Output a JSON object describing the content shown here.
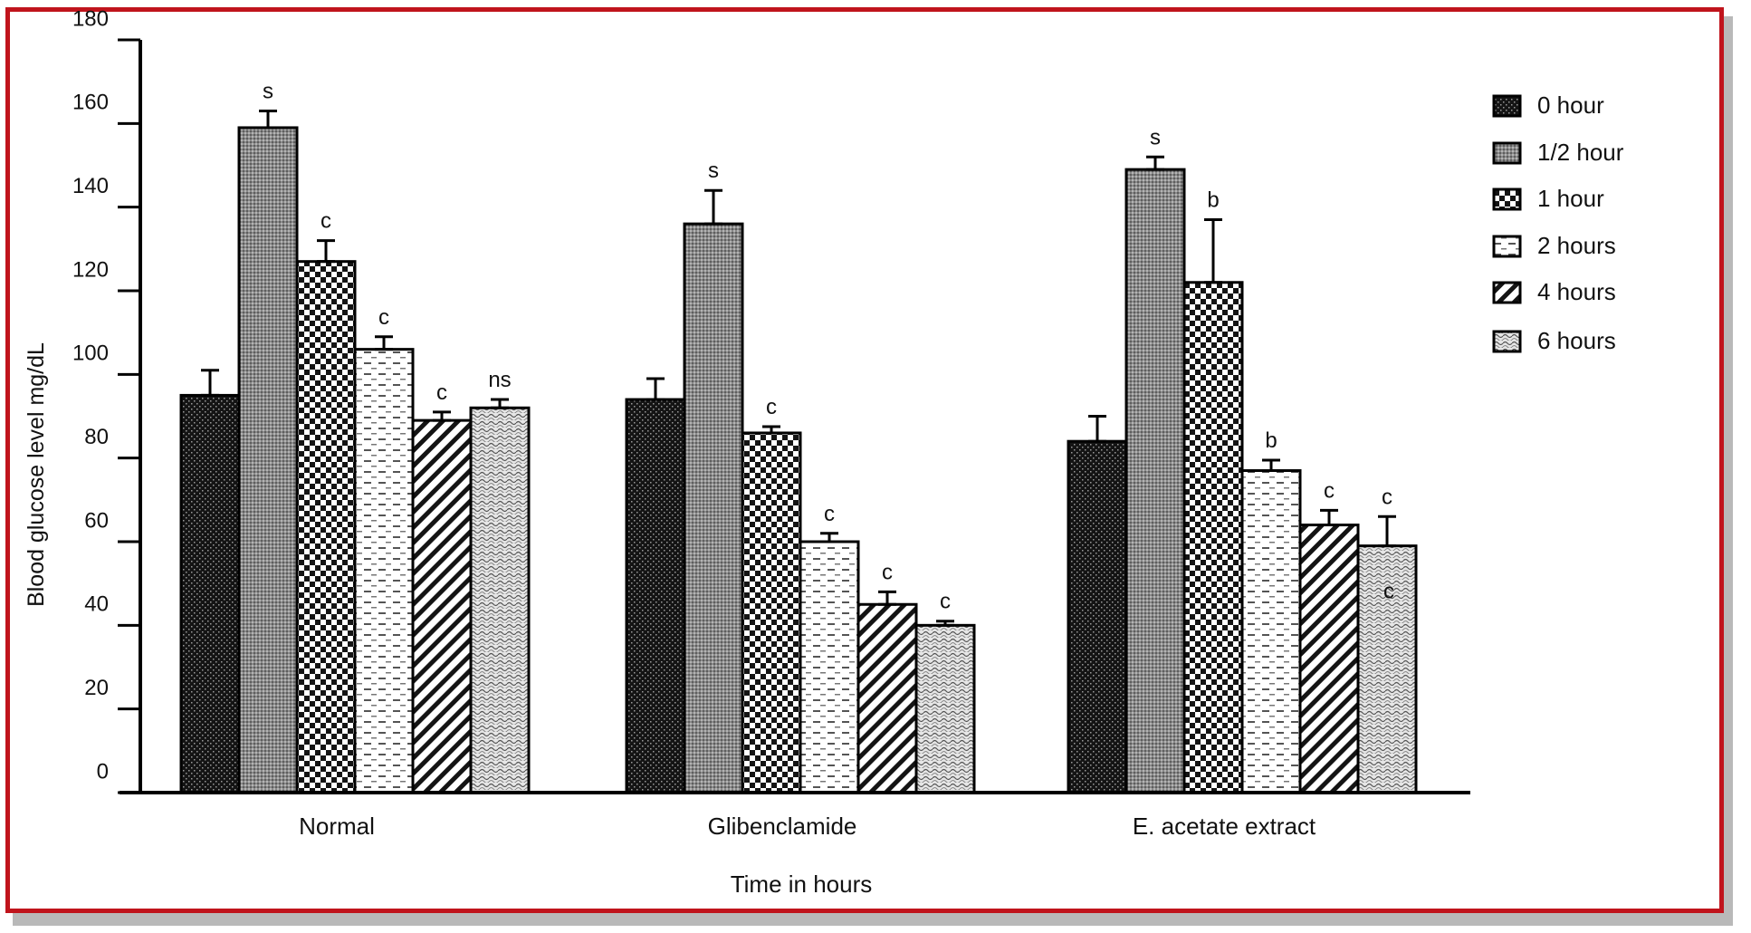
{
  "chart_data": {
    "type": "bar",
    "title": "",
    "xlabel": "Time in hours",
    "ylabel": "Blood glucose level  mg/dL",
    "ylim": [
      0,
      180
    ],
    "yticks": [
      0,
      20,
      40,
      60,
      80,
      100,
      120,
      140,
      160,
      180
    ],
    "categories": [
      "Normal",
      "Glibenclamide",
      "E. acetate extract"
    ],
    "legend_position": "right",
    "series": [
      {
        "name": "0 hour",
        "pattern": "dots-dark",
        "values": [
          95,
          94,
          84
        ],
        "errors": [
          6,
          5,
          6
        ],
        "labels": [
          "",
          "",
          ""
        ]
      },
      {
        "name": "1/2 hour",
        "pattern": "fine-grey",
        "values": [
          159,
          136,
          149
        ],
        "errors": [
          4,
          8,
          3
        ],
        "labels": [
          "s",
          "s",
          "s"
        ]
      },
      {
        "name": "1 hour",
        "pattern": "checker",
        "values": [
          127,
          86,
          122
        ],
        "errors": [
          5,
          1.5,
          15
        ],
        "labels": [
          "c",
          "c",
          "b"
        ]
      },
      {
        "name": "2 hours",
        "pattern": "dashes",
        "values": [
          106,
          60,
          77
        ],
        "errors": [
          3,
          2,
          2.5
        ],
        "labels": [
          "c",
          "c",
          "b"
        ]
      },
      {
        "name": "4 hours",
        "pattern": "diagonal",
        "values": [
          89,
          45,
          64
        ],
        "errors": [
          2,
          3,
          3.5
        ],
        "labels": [
          "c",
          "c",
          "c"
        ]
      },
      {
        "name": "6 hours",
        "pattern": "waves",
        "values": [
          92,
          40,
          59
        ],
        "errors": [
          2,
          1,
          7
        ],
        "labels": [
          "ns",
          "c",
          "c"
        ]
      }
    ],
    "annotations": [
      {
        "category": "E. acetate extract",
        "series": "6 hours",
        "text": "c",
        "placement": "inside-bar"
      }
    ]
  },
  "colors": {
    "frame": "#c0141c",
    "shadow": "#b9b9b9",
    "ink": "#111111"
  }
}
